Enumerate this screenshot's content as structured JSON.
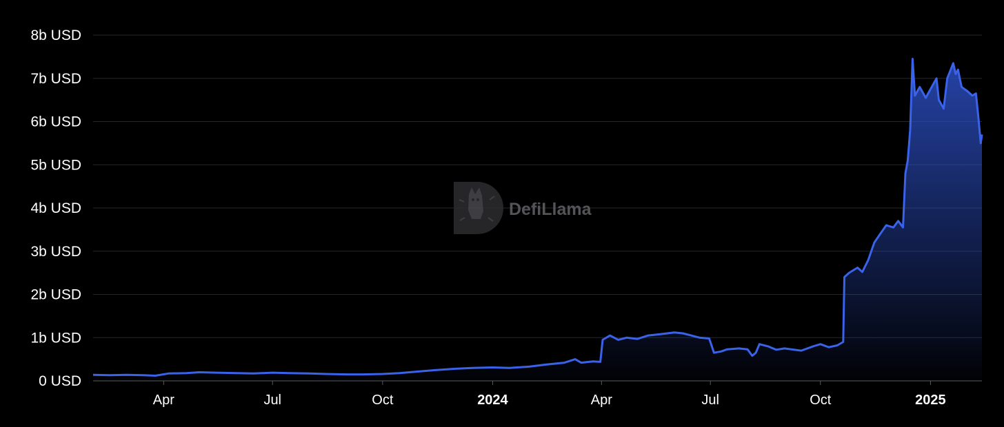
{
  "chart_data": {
    "type": "area",
    "title": "",
    "xlabel": "",
    "ylabel": "",
    "watermark": "DefiLlama",
    "line_color": "#3a63ea",
    "fill_color_top": "#2c4fc4",
    "background": "#000000",
    "grid": true,
    "legend": "none",
    "x_range": [
      "2023-02-01",
      "2025-02-13"
    ],
    "ylim": [
      0,
      8
    ],
    "y_ticks": [
      {
        "value": 0,
        "label": "0 USD"
      },
      {
        "value": 1,
        "label": "1b USD"
      },
      {
        "value": 2,
        "label": "2b USD"
      },
      {
        "value": 3,
        "label": "3b USD"
      },
      {
        "value": 4,
        "label": "4b USD"
      },
      {
        "value": 5,
        "label": "5b USD"
      },
      {
        "value": 6,
        "label": "6b USD"
      },
      {
        "value": 7,
        "label": "7b USD"
      },
      {
        "value": 8,
        "label": "8b USD"
      }
    ],
    "x_ticks": [
      {
        "date": "2023-04-01",
        "label": "Apr",
        "bold": false
      },
      {
        "date": "2023-07-01",
        "label": "Jul",
        "bold": false
      },
      {
        "date": "2023-10-01",
        "label": "Oct",
        "bold": false
      },
      {
        "date": "2024-01-01",
        "label": "2024",
        "bold": true
      },
      {
        "date": "2024-04-01",
        "label": "Apr",
        "bold": false
      },
      {
        "date": "2024-07-01",
        "label": "Jul",
        "bold": false
      },
      {
        "date": "2024-10-01",
        "label": "Oct",
        "bold": false
      },
      {
        "date": "2025-01-01",
        "label": "2025",
        "bold": true
      }
    ],
    "series": [
      {
        "unit": "b USD",
        "points": [
          [
            "2023-02-01",
            0.14
          ],
          [
            "2023-02-15",
            0.13
          ],
          [
            "2023-03-01",
            0.14
          ],
          [
            "2023-03-15",
            0.13
          ],
          [
            "2023-03-25",
            0.12
          ],
          [
            "2023-04-05",
            0.17
          ],
          [
            "2023-04-20",
            0.18
          ],
          [
            "2023-05-01",
            0.2
          ],
          [
            "2023-05-15",
            0.19
          ],
          [
            "2023-06-01",
            0.18
          ],
          [
            "2023-06-15",
            0.17
          ],
          [
            "2023-07-01",
            0.19
          ],
          [
            "2023-07-15",
            0.18
          ],
          [
            "2023-08-01",
            0.17
          ],
          [
            "2023-08-15",
            0.16
          ],
          [
            "2023-09-01",
            0.15
          ],
          [
            "2023-09-15",
            0.15
          ],
          [
            "2023-10-01",
            0.16
          ],
          [
            "2023-10-15",
            0.18
          ],
          [
            "2023-11-01",
            0.22
          ],
          [
            "2023-11-15",
            0.25
          ],
          [
            "2023-12-01",
            0.28
          ],
          [
            "2023-12-15",
            0.3
          ],
          [
            "2024-01-01",
            0.31
          ],
          [
            "2024-01-15",
            0.3
          ],
          [
            "2024-02-01",
            0.33
          ],
          [
            "2024-02-15",
            0.38
          ],
          [
            "2024-03-01",
            0.42
          ],
          [
            "2024-03-10",
            0.5
          ],
          [
            "2024-03-15",
            0.42
          ],
          [
            "2024-03-25",
            0.45
          ],
          [
            "2024-03-31",
            0.44
          ],
          [
            "2024-04-02",
            0.95
          ],
          [
            "2024-04-08",
            1.05
          ],
          [
            "2024-04-15",
            0.95
          ],
          [
            "2024-04-22",
            1.0
          ],
          [
            "2024-05-01",
            0.97
          ],
          [
            "2024-05-10",
            1.05
          ],
          [
            "2024-05-20",
            1.08
          ],
          [
            "2024-06-01",
            1.12
          ],
          [
            "2024-06-08",
            1.1
          ],
          [
            "2024-06-15",
            1.05
          ],
          [
            "2024-06-22",
            1.0
          ],
          [
            "2024-06-30",
            0.98
          ],
          [
            "2024-07-04",
            0.65
          ],
          [
            "2024-07-10",
            0.68
          ],
          [
            "2024-07-15",
            0.73
          ],
          [
            "2024-07-25",
            0.75
          ],
          [
            "2024-08-01",
            0.73
          ],
          [
            "2024-08-05",
            0.58
          ],
          [
            "2024-08-08",
            0.65
          ],
          [
            "2024-08-11",
            0.85
          ],
          [
            "2024-08-18",
            0.8
          ],
          [
            "2024-08-25",
            0.72
          ],
          [
            "2024-09-01",
            0.75
          ],
          [
            "2024-09-15",
            0.7
          ],
          [
            "2024-09-25",
            0.8
          ],
          [
            "2024-10-01",
            0.85
          ],
          [
            "2024-10-08",
            0.78
          ],
          [
            "2024-10-15",
            0.82
          ],
          [
            "2024-10-20",
            0.9
          ],
          [
            "2024-10-21",
            2.4
          ],
          [
            "2024-10-25",
            2.5
          ],
          [
            "2024-11-01",
            2.62
          ],
          [
            "2024-11-05",
            2.52
          ],
          [
            "2024-11-10",
            2.8
          ],
          [
            "2024-11-15",
            3.2
          ],
          [
            "2024-11-20",
            3.4
          ],
          [
            "2024-11-25",
            3.6
          ],
          [
            "2024-12-01",
            3.55
          ],
          [
            "2024-12-05",
            3.7
          ],
          [
            "2024-12-09",
            3.55
          ],
          [
            "2024-12-11",
            4.8
          ],
          [
            "2024-12-13",
            5.1
          ],
          [
            "2024-12-15",
            5.8
          ],
          [
            "2024-12-17",
            7.45
          ],
          [
            "2024-12-19",
            6.6
          ],
          [
            "2024-12-23",
            6.8
          ],
          [
            "2024-12-28",
            6.55
          ],
          [
            "2025-01-02",
            6.8
          ],
          [
            "2025-01-06",
            7.0
          ],
          [
            "2025-01-08",
            6.5
          ],
          [
            "2025-01-12",
            6.3
          ],
          [
            "2025-01-15",
            7.0
          ],
          [
            "2025-01-20",
            7.35
          ],
          [
            "2025-01-22",
            7.1
          ],
          [
            "2025-01-24",
            7.2
          ],
          [
            "2025-01-27",
            6.8
          ],
          [
            "2025-02-01",
            6.7
          ],
          [
            "2025-02-05",
            6.6
          ],
          [
            "2025-02-08",
            6.65
          ],
          [
            "2025-02-10",
            6.1
          ],
          [
            "2025-02-12",
            5.5
          ],
          [
            "2025-02-13",
            5.7
          ]
        ]
      }
    ]
  }
}
